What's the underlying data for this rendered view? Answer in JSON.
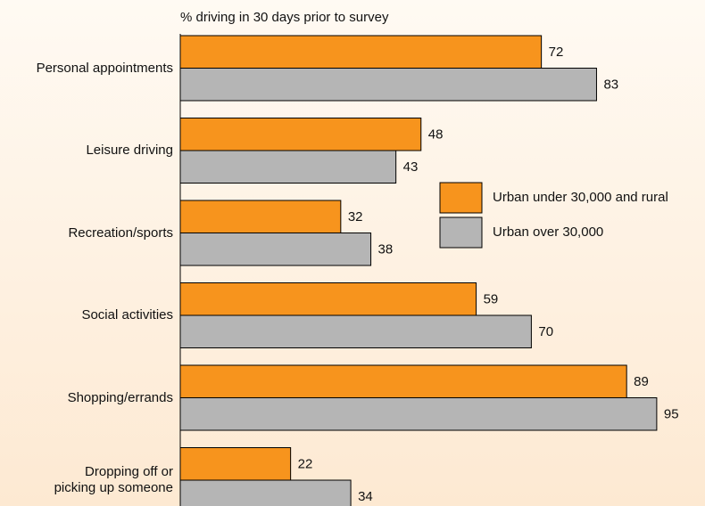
{
  "chart_data": {
    "type": "bar",
    "orientation": "horizontal",
    "axis_label": "% driving in 30 days prior to survey",
    "categories": [
      "Personal appointments",
      "Leisure driving",
      "Recreation/sports",
      "Social activities",
      "Shopping/errands",
      "Dropping off or\npicking up someone"
    ],
    "series": [
      {
        "name": "Urban under 30,000 and rural",
        "color": "#f7941d",
        "values": [
          72,
          48,
          32,
          59,
          89,
          22
        ]
      },
      {
        "name": "Urban over 30,000",
        "color": "#b5b5b5",
        "values": [
          83,
          43,
          38,
          70,
          95,
          34
        ]
      }
    ]
  }
}
